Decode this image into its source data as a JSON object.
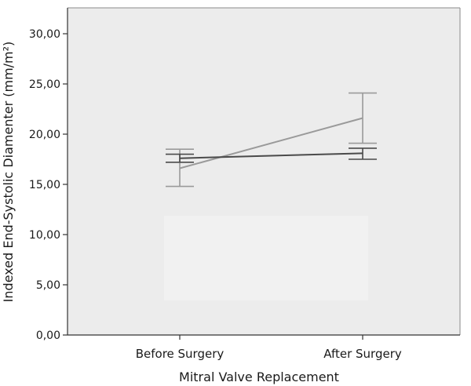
{
  "chart_data": {
    "type": "line",
    "title": "",
    "xlabel": "Mitral Valve Replacement",
    "ylabel": "Indexed End-Systolic Diamenter (mm/m²)",
    "categories": [
      "Before Surgery",
      "After Surgery"
    ],
    "ylim": [
      0,
      32
    ],
    "yticks": [
      0,
      5,
      10,
      15,
      20,
      25,
      30
    ],
    "ytick_labels": [
      "0,00",
      "5,00",
      "10,00",
      "15,00",
      "20,00",
      "25,00",
      "30,00"
    ],
    "grid": false,
    "legend": "none",
    "series": [
      {
        "values": [
          16.6,
          21.6
        ],
        "error_low": [
          14.8,
          19.1
        ],
        "error_high": [
          18.5,
          24.1
        ],
        "color": "#9a9a9a"
      },
      {
        "values": [
          17.6,
          18.1
        ],
        "error_low": [
          17.2,
          17.5
        ],
        "error_high": [
          18.0,
          18.6
        ],
        "color": "#4a4a4a"
      }
    ],
    "background_color": "#ececec"
  }
}
